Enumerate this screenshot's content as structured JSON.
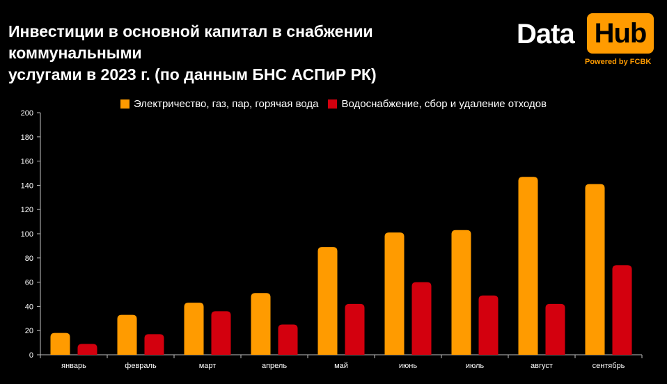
{
  "header": {
    "title_line1": "Инвестиции в основной капитал в снабжении коммунальными",
    "title_line2": "услугами в 2023 г. (по данным БНС АСПиР РК)"
  },
  "logo": {
    "word1": "Data",
    "word2": "Hub",
    "tagline": "Powered by FCBK",
    "accent_color": "#ff9b00"
  },
  "chart_data": {
    "type": "bar",
    "title": "Инвестиции в основной капитал в снабжении коммунальными услугами в 2023 г. (по данным БНС АСПиР РК)",
    "categories": [
      "январь",
      "февраль",
      "март",
      "апрель",
      "май",
      "июнь",
      "июль",
      "август",
      "сентябрь"
    ],
    "series": [
      {
        "name": "Электричество, газ, пар, горячая вода",
        "color": "#ff9b00",
        "values": [
          18,
          33,
          43,
          51,
          89,
          101,
          103,
          147,
          141
        ]
      },
      {
        "name": "Водоснабжение, сбор и удаление отходов",
        "color": "#d3000e",
        "values": [
          9,
          17,
          36,
          25,
          42,
          60,
          49,
          42,
          74
        ]
      }
    ],
    "ylim": [
      0,
      200
    ],
    "yticks": [
      0,
      20,
      40,
      60,
      80,
      100,
      120,
      140,
      160,
      180,
      200
    ],
    "xlabel": "",
    "ylabel": "",
    "grid": false,
    "legend_position": "top-center"
  }
}
